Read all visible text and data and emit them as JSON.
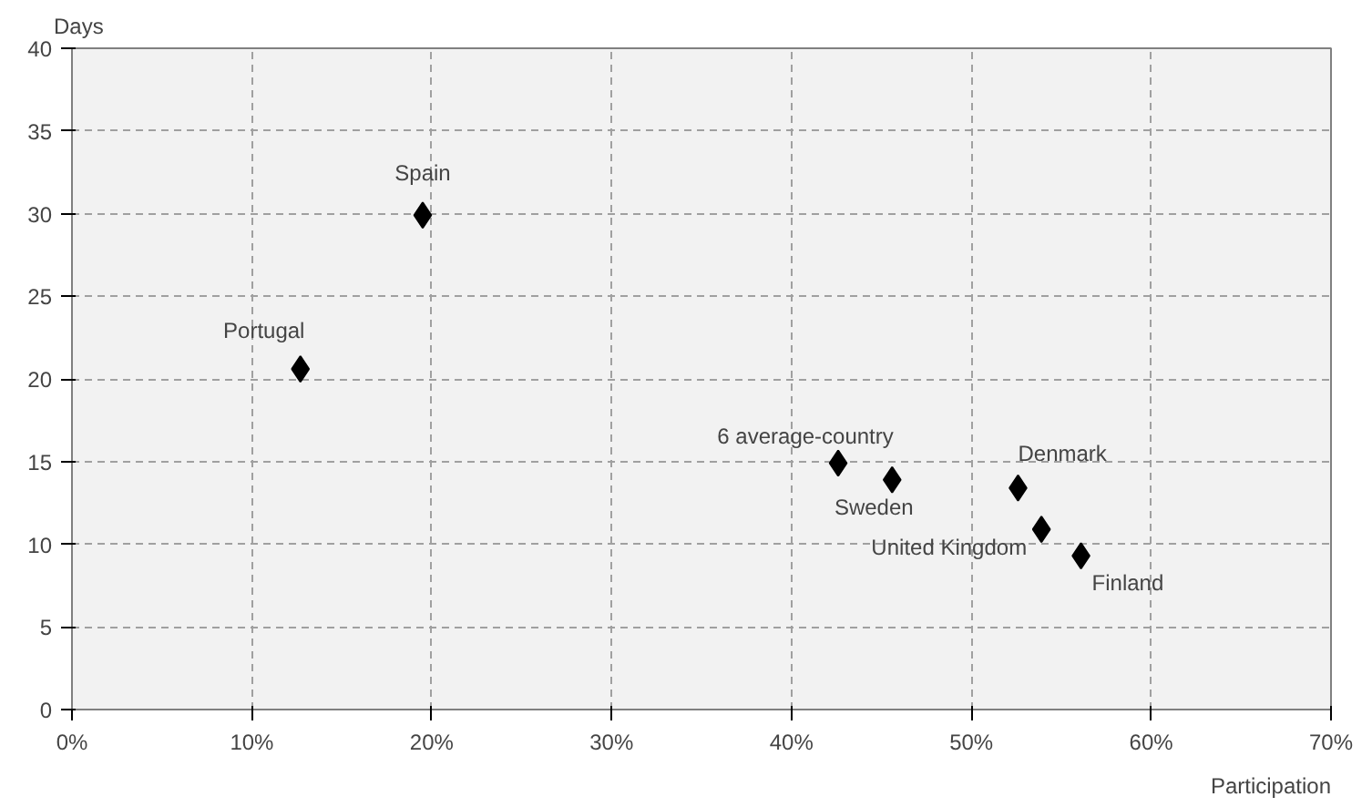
{
  "chart_data": {
    "type": "scatter",
    "xlabel": "Participation",
    "ylabel": "Days",
    "x": [
      19.5,
      12.7,
      42.6,
      45.6,
      52.6,
      53.9,
      56.1
    ],
    "series": [
      {
        "color": "#000000",
        "values": [
          29.9,
          20.6,
          14.9,
          13.9,
          13.4,
          10.9,
          9.3
        ]
      }
    ],
    "xlim": [
      0,
      70
    ],
    "ylim": [
      0,
      40
    ],
    "xticks": [
      {
        "value": 0,
        "label": "0%"
      },
      {
        "value": 10,
        "label": "10%"
      },
      {
        "value": 20,
        "label": "20%"
      },
      {
        "value": 30,
        "label": "30%"
      },
      {
        "value": 40,
        "label": "40%"
      },
      {
        "value": 50,
        "label": "50%"
      },
      {
        "value": 60,
        "label": "60%"
      },
      {
        "value": 70,
        "label": "70%"
      }
    ],
    "yticks": [
      0,
      5,
      10,
      15,
      20,
      25,
      30,
      35,
      40
    ],
    "grid": true,
    "marker": "diamond",
    "annotations": [
      {
        "text": "Spain",
        "x": 19.5,
        "y": 29.9
      },
      {
        "text": "Portugal",
        "x": 12.7,
        "y": 20.6
      },
      {
        "text": "6 average-country",
        "x": 42.6,
        "y": 14.9
      },
      {
        "text": "Sweden",
        "x": 45.6,
        "y": 13.9
      },
      {
        "text": "Denmark",
        "x": 52.6,
        "y": 13.4
      },
      {
        "text": "United Kingdom",
        "x": 53.9,
        "y": 10.9
      },
      {
        "text": "Finland",
        "x": 56.1,
        "y": 9.3
      }
    ]
  }
}
